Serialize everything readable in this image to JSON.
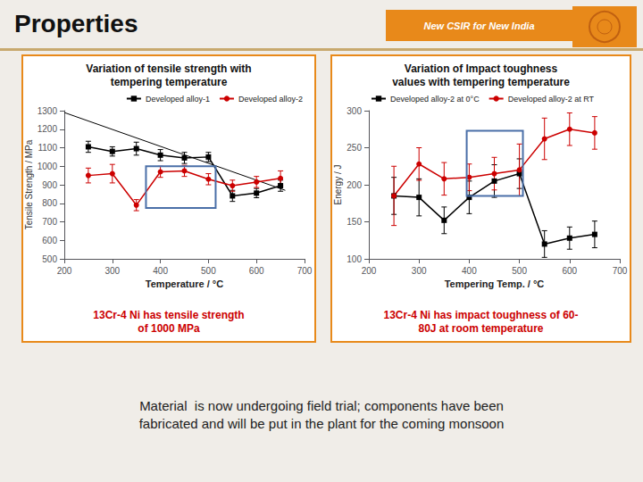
{
  "title": "Properties",
  "annotations": [
    {
      "text": "New CSIR for New India",
      "color": "#ffffff",
      "background": "#e8891a"
    },
    {
      "text": "Material  is now undergoing field trial; components have been\nfabricated and will be put in the plant for the coming monsoon",
      "color": "#222222"
    }
  ],
  "chart_data": [
    {
      "type": "line",
      "title": "Variation of tensile strength with\ntempering temperature",
      "xlabel": "Temperature / °C",
      "ylabel": "Tensile Strength / MPa",
      "x": [
        250,
        300,
        350,
        400,
        450,
        500,
        550,
        600,
        650
      ],
      "xlim": [
        200,
        700
      ],
      "xticks": [
        200,
        300,
        400,
        500,
        600,
        700
      ],
      "ylim": [
        500,
        1300
      ],
      "yticks": [
        500,
        600,
        700,
        800,
        900,
        1000,
        1100,
        1200,
        1300
      ],
      "grid": false,
      "legend": "upper right",
      "series": [
        {
          "name": "Developed alloy-1",
          "color": "#000000",
          "marker": "square",
          "values": [
            1105,
            1080,
            1095,
            1060,
            1045,
            1050,
            840,
            855,
            895
          ],
          "yerr": [
            30,
            25,
            35,
            30,
            30,
            25,
            30,
            25,
            30
          ]
        },
        {
          "name": "Developed alloy-2",
          "color": "#cc0000",
          "marker": "circle",
          "values": [
            950,
            960,
            790,
            970,
            975,
            930,
            895,
            915,
            935
          ],
          "yerr": [
            40,
            50,
            30,
            30,
            30,
            30,
            30,
            30,
            40
          ]
        }
      ],
      "trend_line": {
        "x": [
          200,
          660
        ],
        "y": [
          1290,
          870
        ],
        "color": "#000000"
      },
      "highlight": {
        "x": 370,
        "y": 775,
        "width": 145,
        "height": 225,
        "color": "#4a6fa8"
      },
      "annotations": [
        {
          "text": "13Cr-4 Ni has tensile strength\nof 1000 MPa",
          "color": "#cc0000"
        }
      ]
    },
    {
      "type": "line",
      "title": "Variation of Impact toughness\nvalues with tempering temperature",
      "xlabel": "Tempering Temp. / °C",
      "ylabel": "Energy / J",
      "x": [
        250,
        300,
        350,
        400,
        450,
        500,
        550,
        600,
        650
      ],
      "xlim": [
        200,
        700
      ],
      "xticks": [
        200,
        300,
        400,
        500,
        600,
        700
      ],
      "ylim": [
        100,
        300
      ],
      "yticks": [
        100,
        150,
        200,
        250,
        300
      ],
      "grid": false,
      "legend": "upper left",
      "series": [
        {
          "name": "Developed alloy-2 at 0°C",
          "color": "#000000",
          "marker": "square",
          "values": [
            185,
            183,
            152,
            183,
            205,
            215,
            120,
            128,
            133
          ],
          "yerr": [
            25,
            25,
            18,
            22,
            22,
            20,
            18,
            15,
            18
          ]
        },
        {
          "name": "Developed alloy-2 at RT",
          "color": "#cc0000",
          "marker": "circle",
          "values": [
            185,
            228,
            208,
            210,
            215,
            220,
            262,
            275,
            270
          ],
          "yerr": [
            40,
            22,
            22,
            18,
            22,
            35,
            28,
            22,
            22
          ]
        }
      ],
      "highlight": {
        "x": 395,
        "y": 185,
        "width": 112,
        "height": 88,
        "color": "#4a6fa8"
      },
      "annotations": [
        {
          "text": "13Cr-4 Ni has impact toughness of 60-\n80J at room temperature",
          "color": "#cc0000"
        }
      ]
    }
  ]
}
